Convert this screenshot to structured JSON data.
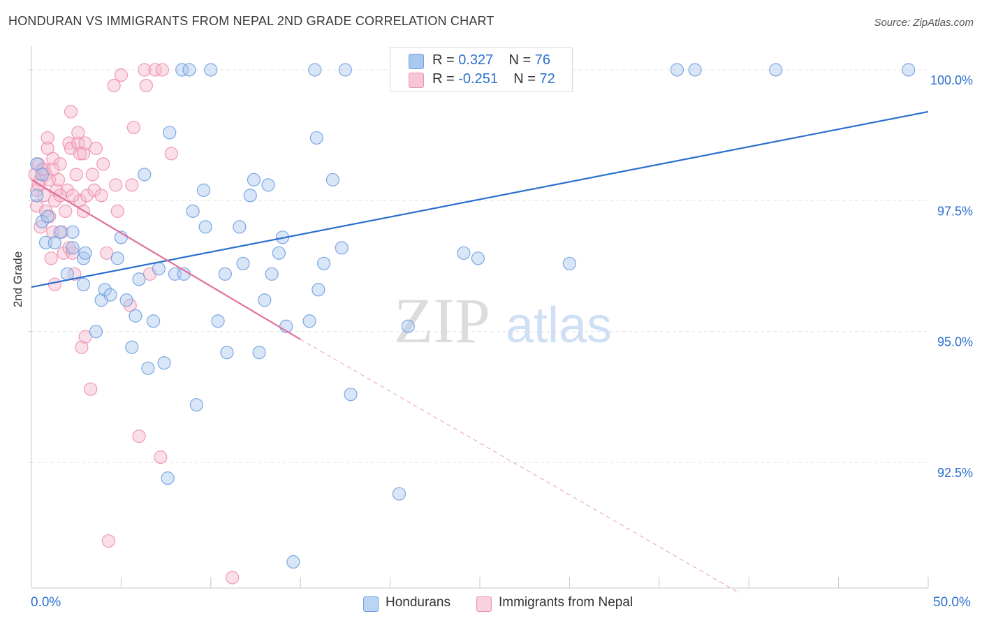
{
  "header": {
    "title": "HONDURAN VS IMMIGRANTS FROM NEPAL 2ND GRADE CORRELATION CHART",
    "source": "Source: ZipAtlas.com"
  },
  "legend": {
    "row1": {
      "r_label": "R =",
      "r_value": "0.327",
      "n_label": "N =",
      "n_value": "76"
    },
    "row2": {
      "r_label": "R =",
      "r_value": "-0.251",
      "n_label": "N =",
      "n_value": "72"
    }
  },
  "bottom_legend": {
    "series1": "Hondurans",
    "series2": "Immigrants from Nepal"
  },
  "axes": {
    "x_min_label": "0.0%",
    "x_max_label": "50.0%",
    "y_title": "2nd Grade"
  },
  "watermark": {
    "zip": "ZIP",
    "atlas": "atlas"
  },
  "colors": {
    "blue_fill": "#a9c8f0",
    "blue_stroke": "#6f9fe0",
    "blue_line": "#2a6fce",
    "pink_fill": "#f7b8cc",
    "pink_stroke": "#ec8fae",
    "pink_line": "#e0709a",
    "grid": "#e4e4e4",
    "tick_label": "#2b6fce"
  },
  "chart_data": {
    "type": "scatter",
    "title": "HONDURAN VS IMMIGRANTS FROM NEPAL 2ND GRADE CORRELATION CHART",
    "xlabel": "",
    "ylabel": "2nd Grade",
    "xlim": [
      0,
      50
    ],
    "ylim": [
      90.1,
      100.4
    ],
    "y_ticks": [
      92.5,
      95.0,
      97.5,
      100.0
    ],
    "y_tick_labels": [
      "92.5%",
      "95.0%",
      "97.5%",
      "100.0%"
    ],
    "series": [
      {
        "name": "Hondurans",
        "R": 0.327,
        "N": 76,
        "trend": {
          "x": [
            0,
            50
          ],
          "y": [
            95.85,
            99.2
          ]
        },
        "points": [
          [
            0.3,
            98.2
          ],
          [
            0.3,
            97.6
          ],
          [
            0.6,
            98.0
          ],
          [
            0.6,
            97.1
          ],
          [
            0.9,
            97.2
          ],
          [
            0.8,
            96.7
          ],
          [
            1.3,
            96.7
          ],
          [
            1.6,
            96.9
          ],
          [
            2.0,
            96.1
          ],
          [
            2.3,
            96.9
          ],
          [
            2.3,
            96.6
          ],
          [
            2.9,
            96.4
          ],
          [
            3.0,
            96.5
          ],
          [
            2.9,
            95.9
          ],
          [
            3.6,
            95.0
          ],
          [
            3.9,
            95.6
          ],
          [
            4.1,
            95.8
          ],
          [
            4.4,
            95.7
          ],
          [
            4.8,
            96.4
          ],
          [
            5.0,
            96.8
          ],
          [
            5.3,
            95.6
          ],
          [
            5.6,
            94.7
          ],
          [
            5.8,
            95.3
          ],
          [
            6.0,
            96.0
          ],
          [
            6.3,
            98.0
          ],
          [
            6.5,
            94.3
          ],
          [
            6.8,
            95.2
          ],
          [
            7.1,
            96.2
          ],
          [
            7.4,
            94.4
          ],
          [
            7.6,
            92.2
          ],
          [
            7.7,
            98.8
          ],
          [
            8.0,
            96.1
          ],
          [
            8.4,
            100.0
          ],
          [
            8.8,
            100.0
          ],
          [
            8.5,
            96.1
          ],
          [
            9.0,
            97.3
          ],
          [
            9.2,
            93.6
          ],
          [
            9.6,
            97.7
          ],
          [
            9.7,
            97.0
          ],
          [
            10.0,
            100.0
          ],
          [
            10.4,
            95.2
          ],
          [
            10.8,
            96.1
          ],
          [
            10.9,
            94.6
          ],
          [
            11.6,
            97.0
          ],
          [
            11.8,
            96.3
          ],
          [
            12.2,
            97.6
          ],
          [
            12.4,
            97.9
          ],
          [
            12.7,
            94.6
          ],
          [
            13.0,
            95.6
          ],
          [
            13.2,
            97.8
          ],
          [
            13.4,
            96.1
          ],
          [
            13.8,
            96.5
          ],
          [
            14.0,
            96.8
          ],
          [
            14.2,
            95.1
          ],
          [
            15.5,
            95.2
          ],
          [
            15.8,
            100.0
          ],
          [
            15.9,
            98.7
          ],
          [
            16.0,
            95.8
          ],
          [
            16.3,
            96.3
          ],
          [
            16.8,
            97.9
          ],
          [
            17.3,
            96.6
          ],
          [
            17.5,
            100.0
          ],
          [
            17.8,
            93.8
          ],
          [
            21.0,
            95.1
          ],
          [
            20.5,
            91.9
          ],
          [
            14.6,
            90.6
          ],
          [
            24.1,
            96.5
          ],
          [
            24.9,
            96.4
          ],
          [
            25.2,
            100.0
          ],
          [
            28.0,
            100.0
          ],
          [
            28.5,
            100.0
          ],
          [
            30.0,
            96.3
          ],
          [
            36.0,
            100.0
          ],
          [
            37.0,
            100.0
          ],
          [
            41.5,
            100.0
          ],
          [
            48.9,
            100.0
          ]
        ]
      },
      {
        "name": "Immigrants from Nepal",
        "R": -0.251,
        "N": 72,
        "trend": {
          "x": [
            0,
            15
          ],
          "y": [
            97.9,
            94.85
          ]
        },
        "trend_dashed": {
          "x": [
            15,
            39.5
          ],
          "y": [
            94.85,
            90.0
          ]
        },
        "points": [
          [
            0.2,
            98.0
          ],
          [
            0.3,
            97.7
          ],
          [
            0.3,
            97.4
          ],
          [
            0.4,
            98.2
          ],
          [
            0.5,
            97.9
          ],
          [
            0.6,
            98.1
          ],
          [
            0.7,
            97.6
          ],
          [
            0.8,
            98.0
          ],
          [
            0.8,
            97.3
          ],
          [
            0.9,
            98.7
          ],
          [
            0.9,
            98.5
          ],
          [
            1.0,
            97.9
          ],
          [
            1.1,
            96.4
          ],
          [
            1.2,
            98.3
          ],
          [
            1.2,
            96.9
          ],
          [
            1.3,
            97.5
          ],
          [
            1.3,
            95.9
          ],
          [
            1.4,
            97.7
          ],
          [
            1.5,
            97.9
          ],
          [
            1.6,
            98.2
          ],
          [
            1.7,
            96.9
          ],
          [
            1.8,
            96.5
          ],
          [
            1.9,
            97.3
          ],
          [
            2.0,
            97.7
          ],
          [
            2.1,
            98.6
          ],
          [
            2.1,
            96.6
          ],
          [
            2.2,
            98.5
          ],
          [
            2.3,
            96.5
          ],
          [
            2.2,
            99.2
          ],
          [
            2.4,
            96.1
          ],
          [
            2.5,
            98.0
          ],
          [
            2.6,
            98.6
          ],
          [
            2.6,
            98.8
          ],
          [
            2.7,
            97.5
          ],
          [
            2.7,
            98.4
          ],
          [
            2.9,
            98.4
          ],
          [
            2.9,
            97.3
          ],
          [
            2.8,
            94.7
          ],
          [
            3.0,
            94.9
          ],
          [
            3.0,
            98.6
          ],
          [
            3.1,
            97.6
          ],
          [
            3.3,
            93.9
          ],
          [
            3.4,
            98.0
          ],
          [
            3.5,
            97.7
          ],
          [
            3.6,
            98.5
          ],
          [
            3.9,
            97.6
          ],
          [
            4.0,
            98.2
          ],
          [
            4.2,
            96.5
          ],
          [
            4.3,
            91.0
          ],
          [
            4.6,
            99.7
          ],
          [
            4.7,
            97.8
          ],
          [
            4.8,
            97.3
          ],
          [
            5.0,
            99.9
          ],
          [
            5.6,
            97.8
          ],
          [
            5.5,
            95.5
          ],
          [
            5.7,
            98.9
          ],
          [
            6.0,
            93.0
          ],
          [
            6.3,
            100.0
          ],
          [
            6.4,
            99.7
          ],
          [
            6.6,
            96.1
          ],
          [
            6.9,
            100.0
          ],
          [
            7.2,
            92.6
          ],
          [
            7.3,
            100.0
          ],
          [
            7.8,
            98.4
          ],
          [
            11.2,
            90.3
          ],
          [
            0.5,
            97.0
          ],
          [
            1.0,
            97.2
          ],
          [
            1.6,
            97.6
          ],
          [
            2.3,
            97.6
          ],
          [
            0.7,
            98.1
          ],
          [
            0.4,
            97.8
          ],
          [
            1.2,
            98.1
          ]
        ]
      }
    ]
  }
}
